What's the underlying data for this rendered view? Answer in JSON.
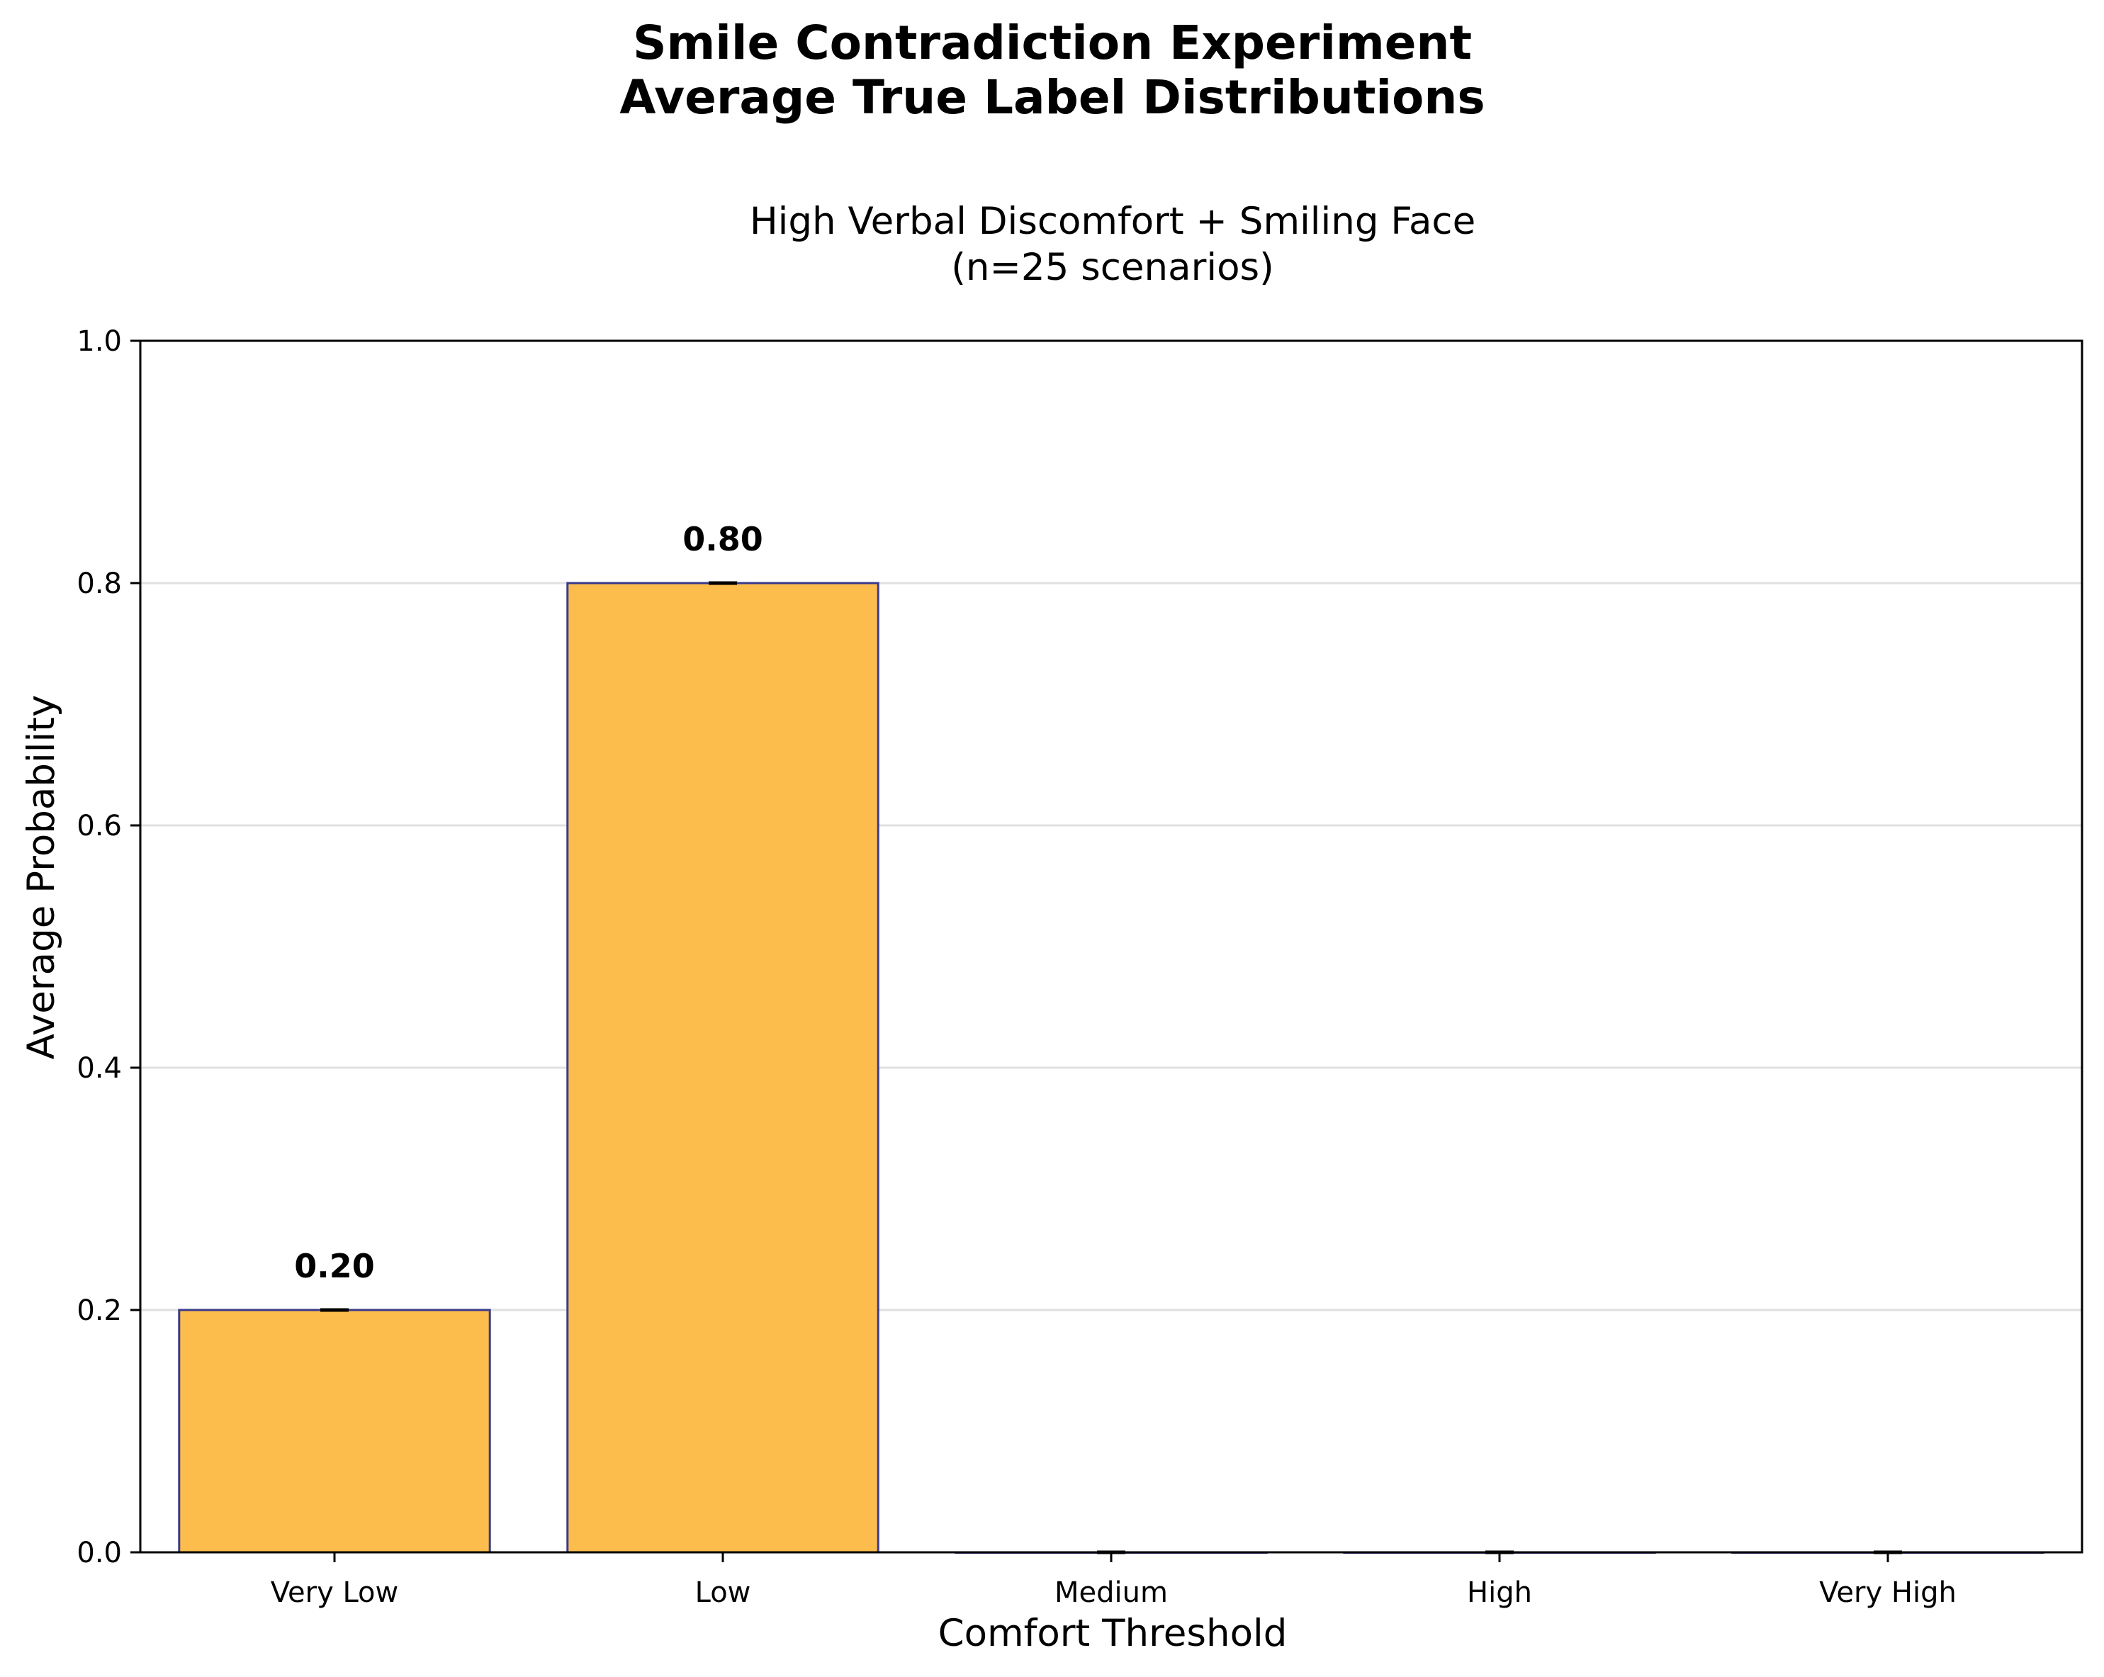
{
  "chart_data": {
    "type": "bar",
    "title": "Smile Contradiction Experiment\nAverage True Label Distributions",
    "subtitle": "High Verbal Discomfort + Smiling Face\n(n=25 scenarios)",
    "xlabel": "Comfort Threshold",
    "ylabel": "Average Probability",
    "categories": [
      "Very Low",
      "Low",
      "Medium",
      "High",
      "Very High"
    ],
    "values": [
      0.2,
      0.8,
      0.0,
      0.0,
      0.0
    ],
    "errors": [
      0.0,
      0.0,
      0.0,
      0.0,
      0.0
    ],
    "data_labels": [
      "0.20",
      "0.80",
      "",
      "",
      ""
    ],
    "ylim": [
      0,
      1.0
    ],
    "yticks": [
      "0.0",
      "0.2",
      "0.4",
      "0.6",
      "0.8",
      "1.0"
    ],
    "grid": "y-axis",
    "colors": {
      "bar_fill": "#FDBD4D",
      "bar_edge": "#3A3A8C",
      "error_bar": "#000000"
    }
  }
}
